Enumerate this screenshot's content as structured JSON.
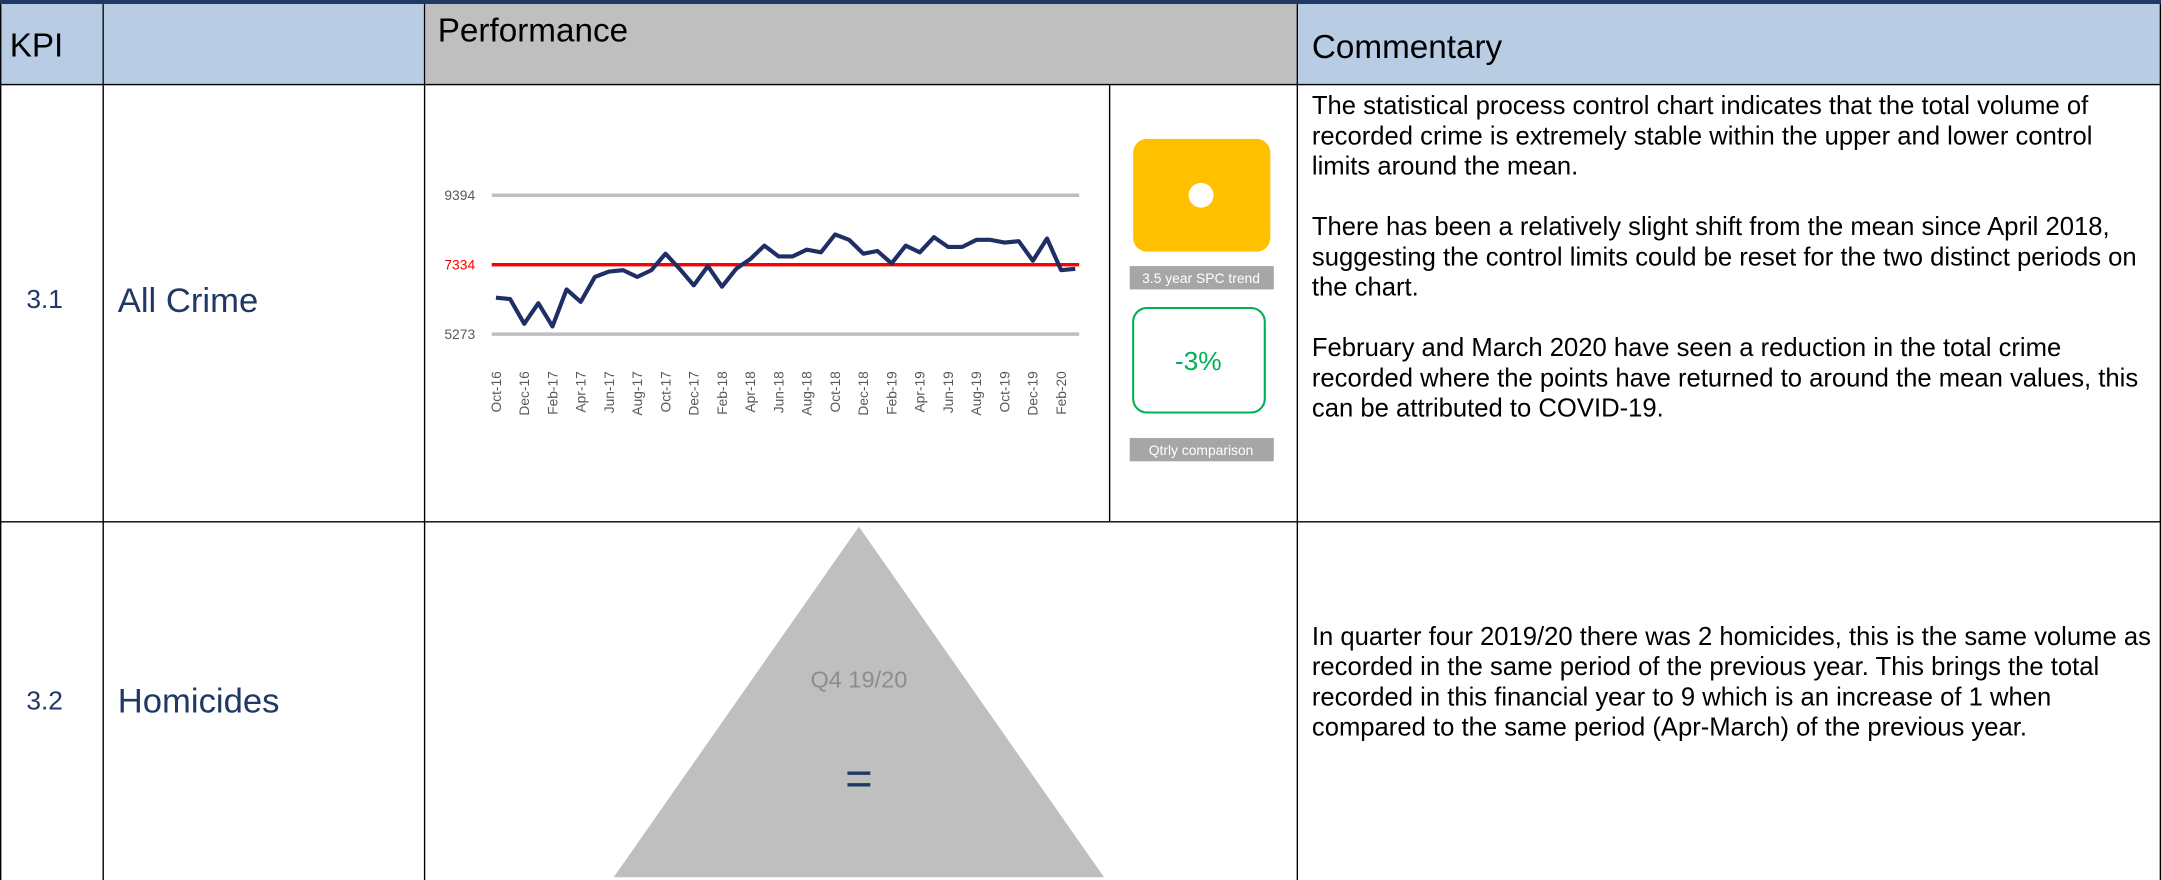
{
  "header": {
    "kpi": "KPI",
    "performance": "Performance",
    "commentary": "Commentary"
  },
  "rows": [
    {
      "kpi": "3.1",
      "name": "All Crime",
      "chart": {
        "type": "line",
        "categories": [
          "Oct-16",
          null,
          "Dec-16",
          null,
          "Feb-17",
          null,
          "Apr-17",
          null,
          "Jun-17",
          null,
          "Aug-17",
          null,
          "Oct-17",
          null,
          "Dec-17",
          null,
          "Feb-18",
          null,
          "Apr-18",
          null,
          "Jun-18",
          null,
          "Aug-18",
          null,
          "Oct-18",
          null,
          "Dec-18",
          null,
          "Feb-19",
          null,
          "Apr-19",
          null,
          "Jun-19",
          null,
          "Aug-19",
          null,
          "Oct-19",
          null,
          "Dec-19",
          null,
          "Feb-20",
          null
        ],
        "series": [
          {
            "color": "#1f2f66",
            "values": [
              6355,
              6314,
              5580,
              6190,
              5500,
              6600,
              6230,
              6970,
              7130,
              7170,
              6970,
              7170,
              7660,
              7210,
              6720,
              7290,
              6680,
              7210,
              7500,
              7900,
              7580,
              7580,
              7780,
              7700,
              8230,
              8070,
              7660,
              7740,
              7370,
              7900,
              7700,
              8150,
              7860,
              7860,
              8070,
              8070,
              7990,
              8030,
              7450,
              8110,
              7170,
              7210
            ]
          }
        ],
        "ylim": [
          5273,
          9394
        ],
        "yticks": [
          5273,
          7334,
          9394
        ],
        "grid": true,
        "grid_color": "#bfbfbf",
        "mean": 7334,
        "mean_color": "#ff0000"
      },
      "trend_label": "3.5 year SPC trend",
      "trend_color": "#ffc000",
      "comparison": "-3%",
      "comparison_label": "Qtrly comparison",
      "comparison_color": "#00b050",
      "commentary": [
        "The statistical process control chart indicates that the total volume of recorded crime is extremely stable within the upper and lower control limits around the mean.",
        "There has been a relatively slight shift from the mean since April 2018, suggesting the control limits could be reset for the two distinct periods on the chart.",
        "February and March 2020 have seen a reduction in the total crime recorded where the points have returned to around the mean values, this can be attributed to COVID-19."
      ]
    },
    {
      "kpi": "3.2",
      "name": "Homicides",
      "period": "Q4 19/20",
      "symbol": "=",
      "commentary": [
        "In quarter four 2019/20 there was 2 homicides, this is the same volume as recorded in the same period of the previous year. This brings the total recorded in this financial year to 9 which is an increase of 1 when compared to the same period (Apr-March) of the previous year."
      ]
    }
  ]
}
